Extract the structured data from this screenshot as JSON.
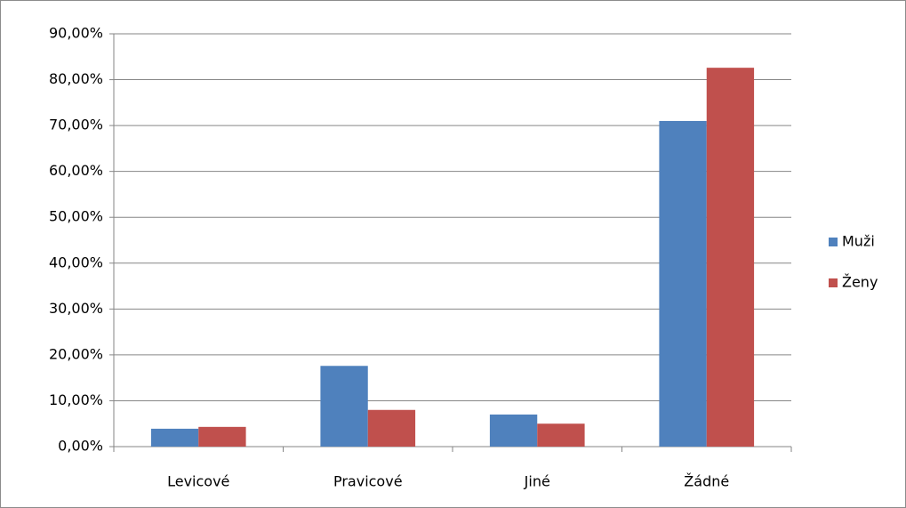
{
  "chart_data": {
    "type": "bar",
    "categories": [
      "Levicové",
      "Pravicové",
      "Jiné",
      "Žádné"
    ],
    "series": [
      {
        "name": "Muži",
        "color": "#4f81bd",
        "values": [
          3.9,
          17.6,
          7.0,
          71.0
        ]
      },
      {
        "name": "Ženy",
        "color": "#c0504d",
        "values": [
          4.3,
          8.0,
          5.0,
          82.6
        ]
      }
    ],
    "ylim": [
      0,
      90
    ],
    "yticks": [
      {
        "value": 0,
        "label": "0,00%"
      },
      {
        "value": 10,
        "label": "10,00%"
      },
      {
        "value": 20,
        "label": "20,00%"
      },
      {
        "value": 30,
        "label": "30,00%"
      },
      {
        "value": 40,
        "label": "40,00%"
      },
      {
        "value": 50,
        "label": "50,00%"
      },
      {
        "value": 60,
        "label": "60,00%"
      },
      {
        "value": 70,
        "label": "70,00%"
      },
      {
        "value": 80,
        "label": "80,00%"
      },
      {
        "value": 90,
        "label": "90,00%"
      }
    ],
    "grid": true,
    "legend": "right"
  }
}
